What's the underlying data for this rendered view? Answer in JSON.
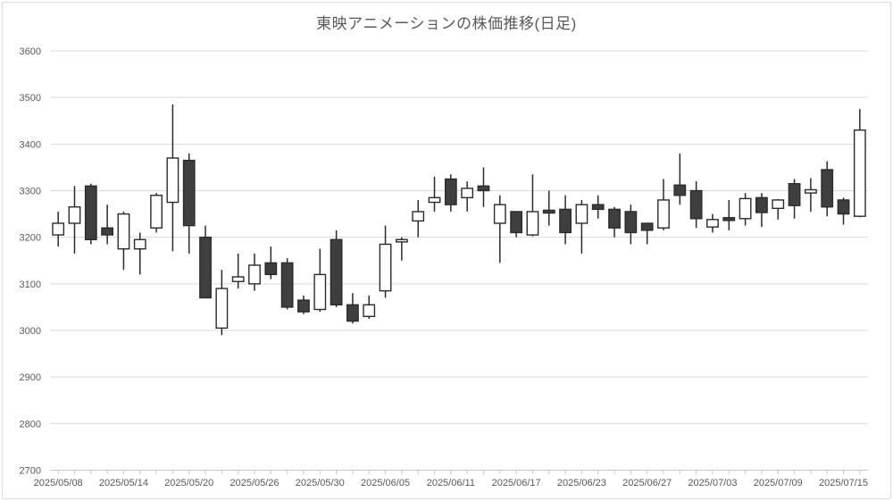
{
  "title": "東映アニメーションの株価推移(日足)",
  "colors": {
    "up_fill": "#ffffff",
    "down_fill": "#3f3f3f",
    "candle_outline": "#2b2b2b",
    "wick": "#2b2b2b",
    "gridline": "#d9d9d9",
    "axis_line": "#c6c6c6",
    "label_text": "#595959",
    "title_text": "#595959"
  },
  "y_axis": {
    "tick_labels": [
      "3600",
      "3500",
      "3400",
      "3300",
      "3200",
      "3100",
      "3000",
      "2900",
      "2800",
      "2700"
    ],
    "min": 2700,
    "max": 3600,
    "step": 100
  },
  "x_axis": {
    "tick_labels": [
      "2025/05/08",
      "2025/05/14",
      "2025/05/20",
      "2025/05/26",
      "2025/05/30",
      "2025/06/05",
      "2025/06/11",
      "2025/06/17",
      "2025/06/23",
      "2025/06/27",
      "2025/07/03",
      "2025/07/09",
      "2025/07/15"
    ],
    "label_interval": 4
  },
  "chart_data": {
    "type": "candlestick",
    "title": "東映アニメーションの株価推移(日足)",
    "ylabel": "",
    "xlabel": "",
    "ylim": [
      2700,
      3600
    ],
    "grid": true,
    "points": [
      {
        "date": "2025/05/08",
        "open": 3205,
        "high": 3255,
        "low": 3180,
        "close": 3230
      },
      {
        "date": "2025/05/09",
        "open": 3230,
        "high": 3310,
        "low": 3165,
        "close": 3265
      },
      {
        "date": "2025/05/12",
        "open": 3310,
        "high": 3315,
        "low": 3185,
        "close": 3195
      },
      {
        "date": "2025/05/13",
        "open": 3220,
        "high": 3270,
        "low": 3185,
        "close": 3205
      },
      {
        "date": "2025/05/14",
        "open": 3175,
        "high": 3255,
        "low": 3130,
        "close": 3250
      },
      {
        "date": "2025/05/15",
        "open": 3175,
        "high": 3210,
        "low": 3120,
        "close": 3195
      },
      {
        "date": "2025/05/16",
        "open": 3220,
        "high": 3295,
        "low": 3210,
        "close": 3290
      },
      {
        "date": "2025/05/19",
        "open": 3275,
        "high": 3485,
        "low": 3170,
        "close": 3370
      },
      {
        "date": "2025/05/20",
        "open": 3365,
        "high": 3380,
        "low": 3165,
        "close": 3225
      },
      {
        "date": "2025/05/21",
        "open": 3200,
        "high": 3225,
        "low": 3070,
        "close": 3070
      },
      {
        "date": "2025/05/22",
        "open": 3005,
        "high": 3130,
        "low": 2990,
        "close": 3090
      },
      {
        "date": "2025/05/23",
        "open": 3105,
        "high": 3165,
        "low": 3090,
        "close": 3115
      },
      {
        "date": "2025/05/26",
        "open": 3100,
        "high": 3165,
        "low": 3085,
        "close": 3140
      },
      {
        "date": "2025/05/27",
        "open": 3145,
        "high": 3180,
        "low": 3110,
        "close": 3120
      },
      {
        "date": "2025/05/28",
        "open": 3145,
        "high": 3155,
        "low": 3045,
        "close": 3050
      },
      {
        "date": "2025/05/29",
        "open": 3065,
        "high": 3075,
        "low": 3035,
        "close": 3040
      },
      {
        "date": "2025/05/30",
        "open": 3045,
        "high": 3175,
        "low": 3040,
        "close": 3120
      },
      {
        "date": "2025/06/02",
        "open": 3195,
        "high": 3215,
        "low": 3050,
        "close": 3055
      },
      {
        "date": "2025/06/03",
        "open": 3055,
        "high": 3080,
        "low": 3015,
        "close": 3020
      },
      {
        "date": "2025/06/04",
        "open": 3030,
        "high": 3075,
        "low": 3025,
        "close": 3055
      },
      {
        "date": "2025/06/05",
        "open": 3085,
        "high": 3225,
        "low": 3070,
        "close": 3185
      },
      {
        "date": "2025/06/06",
        "open": 3190,
        "high": 3200,
        "low": 3150,
        "close": 3195
      },
      {
        "date": "2025/06/09",
        "open": 3235,
        "high": 3280,
        "low": 3200,
        "close": 3255
      },
      {
        "date": "2025/06/10",
        "open": 3275,
        "high": 3330,
        "low": 3255,
        "close": 3285
      },
      {
        "date": "2025/06/11",
        "open": 3325,
        "high": 3335,
        "low": 3255,
        "close": 3270
      },
      {
        "date": "2025/06/12",
        "open": 3285,
        "high": 3320,
        "low": 3255,
        "close": 3305
      },
      {
        "date": "2025/06/13",
        "open": 3310,
        "high": 3350,
        "low": 3265,
        "close": 3300
      },
      {
        "date": "2025/06/16",
        "open": 3230,
        "high": 3290,
        "low": 3145,
        "close": 3270
      },
      {
        "date": "2025/06/17",
        "open": 3255,
        "high": 3255,
        "low": 3200,
        "close": 3210
      },
      {
        "date": "2025/06/18",
        "open": 3205,
        "high": 3335,
        "low": 3202,
        "close": 3255
      },
      {
        "date": "2025/06/19",
        "open": 3258,
        "high": 3300,
        "low": 3225,
        "close": 3252
      },
      {
        "date": "2025/06/20",
        "open": 3260,
        "high": 3290,
        "low": 3185,
        "close": 3210
      },
      {
        "date": "2025/06/23",
        "open": 3230,
        "high": 3280,
        "low": 3165,
        "close": 3270
      },
      {
        "date": "2025/06/24",
        "open": 3270,
        "high": 3290,
        "low": 3240,
        "close": 3260
      },
      {
        "date": "2025/06/25",
        "open": 3260,
        "high": 3265,
        "low": 3200,
        "close": 3220
      },
      {
        "date": "2025/06/26",
        "open": 3255,
        "high": 3270,
        "low": 3185,
        "close": 3210
      },
      {
        "date": "2025/06/27",
        "open": 3230,
        "high": 3230,
        "low": 3185,
        "close": 3215
      },
      {
        "date": "2025/06/30",
        "open": 3220,
        "high": 3325,
        "low": 3215,
        "close": 3280
      },
      {
        "date": "2025/07/01",
        "open": 3312,
        "high": 3380,
        "low": 3270,
        "close": 3290
      },
      {
        "date": "2025/07/02",
        "open": 3300,
        "high": 3320,
        "low": 3220,
        "close": 3240
      },
      {
        "date": "2025/07/03",
        "open": 3222,
        "high": 3250,
        "low": 3210,
        "close": 3238
      },
      {
        "date": "2025/07/04",
        "open": 3242,
        "high": 3280,
        "low": 3215,
        "close": 3236
      },
      {
        "date": "2025/07/07",
        "open": 3240,
        "high": 3295,
        "low": 3225,
        "close": 3283
      },
      {
        "date": "2025/07/08",
        "open": 3285,
        "high": 3295,
        "low": 3222,
        "close": 3253
      },
      {
        "date": "2025/07/09",
        "open": 3262,
        "high": 3282,
        "low": 3238,
        "close": 3280
      },
      {
        "date": "2025/07/10",
        "open": 3315,
        "high": 3325,
        "low": 3240,
        "close": 3268
      },
      {
        "date": "2025/07/11",
        "open": 3295,
        "high": 3327,
        "low": 3255,
        "close": 3302
      },
      {
        "date": "2025/07/14",
        "open": 3345,
        "high": 3363,
        "low": 3245,
        "close": 3265
      },
      {
        "date": "2025/07/15",
        "open": 3280,
        "high": 3285,
        "low": 3227,
        "close": 3250
      },
      {
        "date": "2025/07/16",
        "open": 3245,
        "high": 3475,
        "low": 3243,
        "close": 3430
      }
    ]
  }
}
